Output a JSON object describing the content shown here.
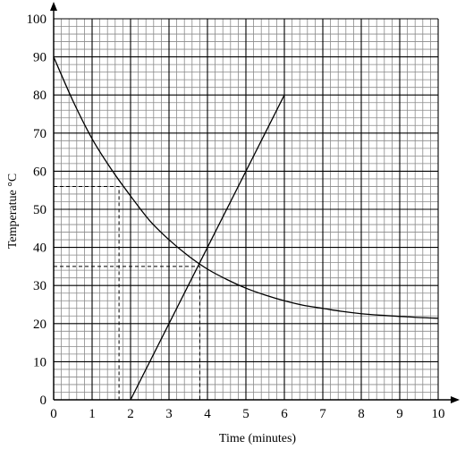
{
  "chart_data": {
    "type": "line",
    "title": "",
    "xlabel": "Time (minutes)",
    "ylabel": "Temperatue °C",
    "xlim": [
      0,
      10
    ],
    "ylim": [
      0,
      100
    ],
    "x_ticks": [
      0,
      1,
      2,
      3,
      4,
      5,
      6,
      7,
      8,
      9,
      10
    ],
    "y_ticks": [
      0,
      10,
      20,
      30,
      40,
      50,
      60,
      70,
      80,
      90,
      100
    ],
    "grid": true,
    "minor_grid_divisions": 5,
    "legend": "none",
    "series": [
      {
        "x": [
          0,
          0.5,
          1,
          1.5,
          2,
          2.5,
          3,
          3.5,
          4,
          4.5,
          5,
          5.5,
          6,
          6.5,
          7,
          7.5,
          8,
          8.5,
          9,
          9.5,
          10
        ],
        "y": [
          90,
          78.5,
          68.5,
          60.5,
          53.5,
          47,
          42,
          37.8,
          34.3,
          31.6,
          29.3,
          27.5,
          26,
          24.8,
          24,
          23.2,
          22.6,
          22.2,
          21.9,
          21.6,
          21.4
        ]
      },
      {
        "x": [
          2,
          6
        ],
        "y": [
          0,
          80
        ]
      }
    ],
    "guides": [
      {
        "x": 1.7,
        "y": 56
      },
      {
        "x": 3.8,
        "y": 35
      }
    ]
  }
}
